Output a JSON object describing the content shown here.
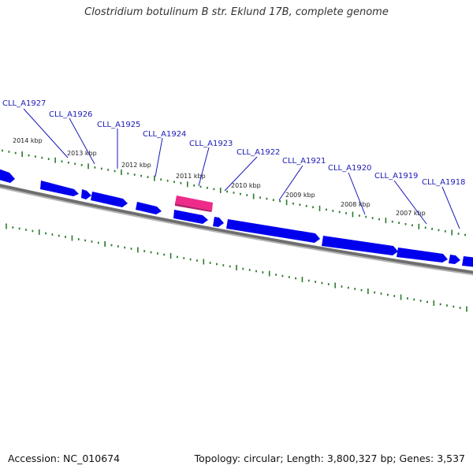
{
  "title": "Clostridium botulinum B str. Eklund 17B, complete genome",
  "footer": {
    "accession": "Accession: NC_010674",
    "summary": "Topology: circular; Length: 3,800,327 bp; Genes: 3,537"
  },
  "colors": {
    "forward_gene": "#0000ee",
    "highlight_gene": "#ee2a8a",
    "backbone": "#7a7a7a",
    "ticks": "#2a7a2a",
    "gene_label": "#1a1ab8",
    "kbp_label": "#222222"
  },
  "kbp_labels": [
    "2014 kbp",
    "2013 kbp",
    "2012 kbp",
    "2011 kbp",
    "2010 kbp",
    "2009 kbp",
    "2008 kbp",
    "2007 kbp"
  ],
  "gene_labels": [
    "CLL_A1927",
    "CLL_A1926",
    "CLL_A1925",
    "CLL_A1924",
    "CLL_A1923",
    "CLL_A1922",
    "CLL_A1921",
    "CLL_A1920",
    "CLL_A1919",
    "CLL_A1918"
  ]
}
